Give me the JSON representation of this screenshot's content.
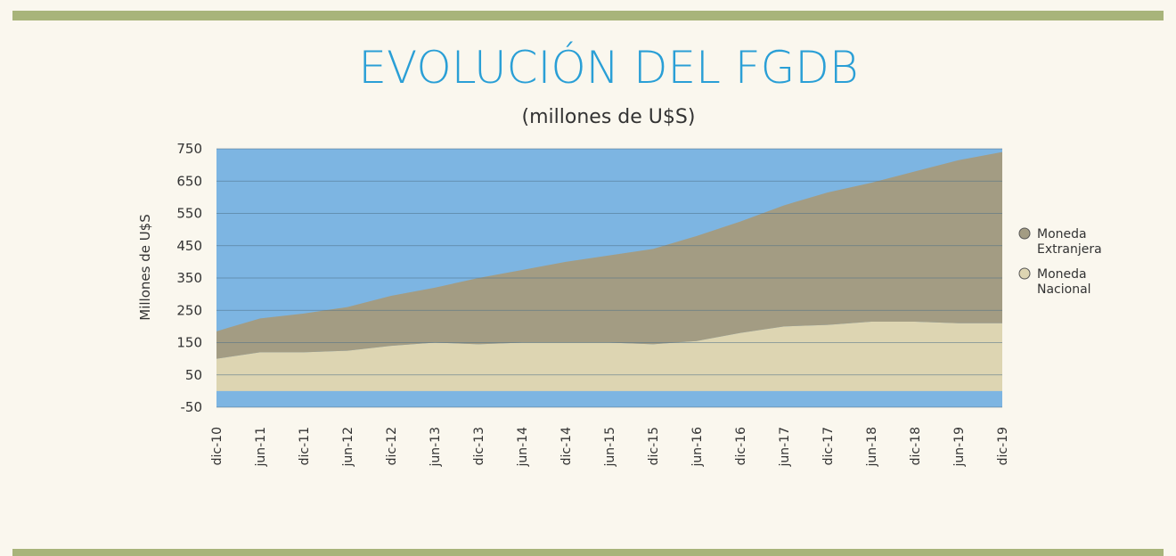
{
  "chart_data": {
    "type": "stacked-area",
    "title": "EVOLUCIÓN DEL FGDB",
    "subtitle": "(millones de U$S)",
    "y_label": "Millones de U$S",
    "categories": [
      "dic-10",
      "jun-11",
      "dic-11",
      "jun-12",
      "dic-12",
      "jun-13",
      "dic-13",
      "jun-14",
      "dic-14",
      "jun-15",
      "dic-15",
      "jun-16",
      "dic-16",
      "jun-17",
      "dic-17",
      "jun-18",
      "dic-18",
      "jun-19",
      "dic-19"
    ],
    "series": [
      {
        "name": "Moneda Nacional",
        "color": "#ddd5b2",
        "values": [
          100,
          120,
          120,
          125,
          140,
          150,
          145,
          150,
          150,
          150,
          145,
          155,
          180,
          200,
          205,
          215,
          215,
          210,
          210
        ]
      },
      {
        "name": "Moneda Extranjera",
        "color": "#a39c83",
        "values": [
          85,
          105,
          120,
          135,
          155,
          170,
          205,
          225,
          250,
          270,
          295,
          325,
          345,
          375,
          410,
          430,
          465,
          505,
          530
        ]
      }
    ],
    "ylim": [
      -50,
      750
    ],
    "yticks": [
      -50,
      50,
      150,
      250,
      350,
      450,
      550,
      650,
      750
    ],
    "grid": true,
    "plot_color": "#7db5e2"
  }
}
